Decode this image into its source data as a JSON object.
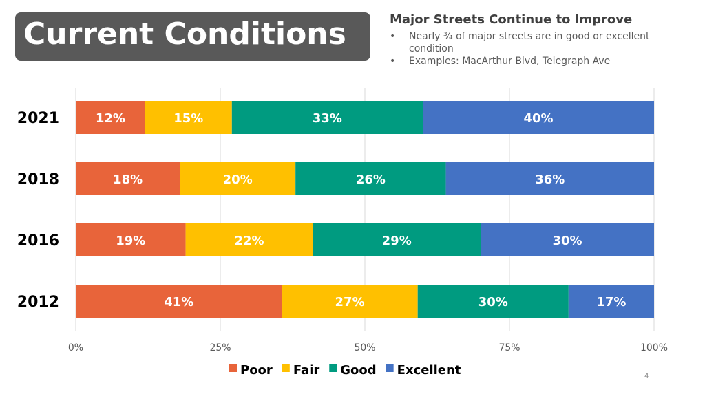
{
  "title": "Current Conditions",
  "subheading": "Major Streets Continue to Improve",
  "bullets": [
    "Nearly ¾ of major streets are in good or excellent condition",
    "Examples: MacArthur Blvd,  Telegraph Ave"
  ],
  "page_number": "4",
  "chart_data": {
    "type": "bar",
    "orientation": "horizontal",
    "stacked": "100%",
    "categories": [
      "2021",
      "2018",
      "2016",
      "2012"
    ],
    "series": [
      {
        "name": "Poor",
        "color": "#E8643A",
        "values": [
          12,
          18,
          19,
          41
        ]
      },
      {
        "name": "Fair",
        "color": "#FFC000",
        "values": [
          15,
          20,
          22,
          27
        ]
      },
      {
        "name": "Good",
        "color": "#009B80",
        "values": [
          33,
          26,
          29,
          30
        ]
      },
      {
        "name": "Excellent",
        "color": "#4472C4",
        "values": [
          40,
          36,
          30,
          17
        ]
      }
    ],
    "data_labels": [
      [
        "12%",
        "18%",
        "19%",
        "41%"
      ],
      [
        "15%",
        "20%",
        "22%",
        "27%"
      ],
      [
        "33%",
        "26%",
        "29%",
        "30%"
      ],
      [
        "40%",
        "36%",
        "30%",
        "17%"
      ]
    ],
    "xticks": [
      "0%",
      "25%",
      "50%",
      "75%",
      "100%"
    ],
    "xlim": [
      0,
      100
    ],
    "grid": true,
    "legend": "bottom"
  }
}
